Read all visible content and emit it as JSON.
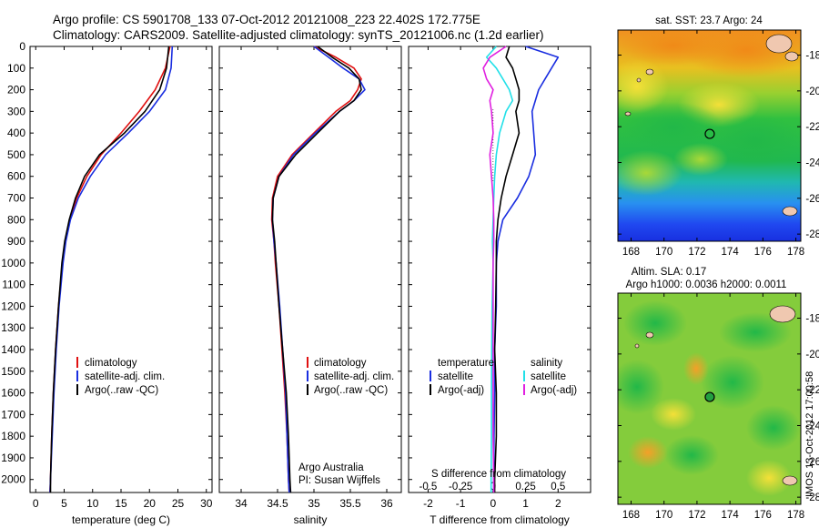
{
  "header": {
    "line1": "Argo profile: CS 5901708_133 07-Oct-2012 20121008_223 22.402S 172.775E",
    "line2": "Climatology: CARS2009. Satellite-adjusted climatology: synTS_20121006.nc (1.2d earlier)"
  },
  "side_stamp": "IMOS 13-Oct-2012 17:00:58",
  "colors": {
    "red": "#e01010",
    "blue": "#1a2ee0",
    "black": "#000000",
    "cyan": "#22e0e8",
    "magenta": "#e020e0"
  },
  "chart_data": [
    {
      "type": "line",
      "id": "temperature",
      "xlabel": "temperature (deg C)",
      "xlim": [
        -1,
        31
      ],
      "xticks": [
        0,
        5,
        10,
        15,
        20,
        25,
        30
      ],
      "ylim": [
        2060,
        0
      ],
      "yticks": [
        0,
        100,
        200,
        300,
        400,
        500,
        600,
        700,
        800,
        900,
        1000,
        1100,
        1200,
        1300,
        1400,
        1500,
        1600,
        1700,
        1800,
        1900,
        2000
      ],
      "depth": [
        0,
        100,
        200,
        300,
        400,
        500,
        600,
        700,
        800,
        900,
        1000,
        1200,
        1400,
        1600,
        1800,
        2000,
        2060
      ],
      "series": [
        {
          "name": "climatology",
          "color": "red",
          "values": [
            23.6,
            22.8,
            21.0,
            18.2,
            15.0,
            11.5,
            9.0,
            7.2,
            6.0,
            5.2,
            4.7,
            4.0,
            3.5,
            3.1,
            2.8,
            2.6,
            2.5
          ]
        },
        {
          "name": "satellite-adj. clim.",
          "color": "blue",
          "values": [
            24.0,
            23.8,
            22.8,
            20.0,
            16.3,
            12.3,
            9.6,
            7.5,
            6.1,
            5.3,
            4.8,
            4.1,
            3.6,
            3.2,
            2.9,
            2.6,
            2.5
          ]
        },
        {
          "name": "Argo(..raw -QC)",
          "color": "black",
          "values": [
            23.4,
            23.0,
            21.8,
            19.2,
            15.6,
            11.2,
            8.6,
            7.0,
            5.9,
            5.1,
            4.6,
            4.0,
            3.5,
            3.1,
            2.8,
            2.6,
            2.6
          ]
        }
      ],
      "legend": [
        "climatology",
        "satellite-adj. clim.",
        "Argo(..raw -QC)"
      ]
    },
    {
      "type": "line",
      "id": "salinity",
      "xlabel": "salinity",
      "xlim": [
        33.7,
        36.2
      ],
      "xticks": [
        34,
        34.5,
        35,
        35.5,
        36
      ],
      "xticklabels": [
        "34",
        "34.5",
        "35",
        "35.5",
        "36"
      ],
      "depth": [
        0,
        50,
        100,
        150,
        200,
        250,
        300,
        400,
        500,
        600,
        700,
        800,
        900,
        1000,
        1200,
        1400,
        1600,
        1800,
        2000,
        2060
      ],
      "series": [
        {
          "name": "climatology",
          "color": "red",
          "values": [
            35.0,
            35.3,
            35.55,
            35.65,
            35.6,
            35.5,
            35.3,
            35.0,
            34.7,
            34.5,
            34.43,
            34.42,
            34.45,
            34.47,
            34.52,
            34.56,
            34.6,
            34.63,
            34.65,
            34.66
          ]
        },
        {
          "name": "satellite-adj. clim.",
          "color": "blue",
          "values": [
            35.0,
            35.2,
            35.4,
            35.62,
            35.7,
            35.55,
            35.35,
            35.02,
            34.72,
            34.52,
            34.44,
            34.43,
            34.45,
            34.48,
            34.53,
            34.57,
            34.61,
            34.63,
            34.65,
            34.66
          ]
        },
        {
          "name": "Argo(..raw -QC)",
          "color": "black",
          "values": [
            35.05,
            35.25,
            35.48,
            35.62,
            35.65,
            35.55,
            35.35,
            35.05,
            34.75,
            34.52,
            34.44,
            34.43,
            34.46,
            34.48,
            34.52,
            34.57,
            34.62,
            34.65,
            34.67,
            34.68
          ]
        }
      ],
      "legend": [
        "climatology",
        "satellite-adj. clim.",
        "Argo(..raw -QC)"
      ],
      "annotation": [
        "Argo Australia",
        "PI: Susan Wijffels"
      ]
    },
    {
      "type": "line",
      "id": "difference",
      "xlabel": "T difference from climatology",
      "xlabel_top": "S difference from climatology",
      "xlim": [
        -2.6,
        3.0
      ],
      "xticks": [
        -2,
        -1,
        0,
        1,
        2
      ],
      "xticks_top": [
        -0.5,
        -0.25,
        0,
        0.25,
        0.5
      ],
      "depth": [
        0,
        50,
        100,
        150,
        200,
        250,
        300,
        400,
        500,
        600,
        700,
        800,
        900,
        1000,
        1200,
        1400,
        1600,
        1800,
        2000,
        2060
      ],
      "series": [
        {
          "name": "temperature satellite",
          "color": "blue",
          "values": [
            1.0,
            2.0,
            1.8,
            1.6,
            1.4,
            1.3,
            1.2,
            1.25,
            1.3,
            1.1,
            0.75,
            0.3,
            0.15,
            0.1,
            0.1,
            0.05,
            0.05,
            0.03,
            0.02,
            0.02
          ]
        },
        {
          "name": "temperature Argo(-adj)",
          "color": "black",
          "values": [
            0.5,
            0.4,
            0.6,
            0.7,
            0.8,
            0.8,
            0.7,
            0.8,
            0.6,
            0.4,
            0.25,
            0.15,
            0.1,
            0.1,
            0.08,
            0.05,
            0.1,
            0.1,
            0.05,
            0.05
          ]
        },
        {
          "name": "salinity satellite",
          "color": "cyan",
          "values": [
            0.1,
            -0.2,
            0.1,
            0.3,
            0.5,
            0.6,
            0.4,
            0.2,
            0.1,
            0.05,
            0.02,
            0.0,
            -0.02,
            0.0,
            -0.03,
            -0.04,
            -0.05,
            -0.05,
            -0.06,
            -0.06
          ]
        },
        {
          "name": "salinity Argo(-adj)",
          "color": "magenta",
          "values": [
            0.4,
            -0.1,
            -0.3,
            -0.2,
            0.0,
            -0.1,
            -0.05,
            0.0,
            -0.1,
            -0.05,
            0.0,
            0.02,
            0.02,
            0.0,
            0.0,
            0.0,
            0.0,
            0.0,
            0.02,
            0.02
          ]
        }
      ],
      "legend_headers": [
        "temperature",
        "salinity"
      ],
      "legend": [
        "satellite",
        "Argo(-adj)",
        "satellite",
        "Argo(-adj)"
      ]
    },
    {
      "type": "heatmap",
      "id": "sst_map",
      "title": "sat. SST: 23.7  Argo: 24",
      "xticks": [
        168,
        170,
        172,
        174,
        176,
        178
      ],
      "yticks": [
        -18,
        -20,
        -22,
        -24,
        -26,
        -28
      ],
      "float_marker": [
        172.775,
        -22.402
      ]
    },
    {
      "type": "heatmap",
      "id": "sla_map",
      "title": "Altim. SLA: 0.17",
      "subtitle": "Argo h1000: 0.0036  h2000: 0.0011",
      "xticks": [
        168,
        170,
        172,
        174,
        176,
        178
      ],
      "yticks": [
        -18,
        -20,
        -22,
        -24,
        -26,
        -28
      ],
      "float_marker": [
        172.775,
        -22.402
      ]
    }
  ]
}
